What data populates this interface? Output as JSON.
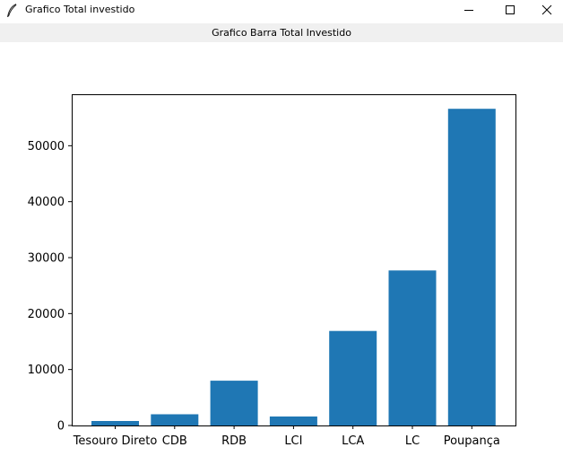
{
  "window": {
    "title": "Grafico Total investido",
    "icon": "feather-icon",
    "controls": [
      "minimize-icon",
      "maximize-icon",
      "close-icon"
    ]
  },
  "header_label": "Grafico Barra Total Investido",
  "chart_data": {
    "type": "bar",
    "categories": [
      "Tesouro Direto",
      "CDB",
      "RDB",
      "LCI",
      "LCA",
      "LC",
      "Poupança"
    ],
    "values": [
      800,
      2000,
      8000,
      1600,
      16900,
      27700,
      56600
    ],
    "ylim": [
      0,
      59200
    ],
    "yticks": [
      0,
      10000,
      20000,
      30000,
      40000,
      50000
    ],
    "bar_color": "#1f77b4",
    "grid": false
  }
}
